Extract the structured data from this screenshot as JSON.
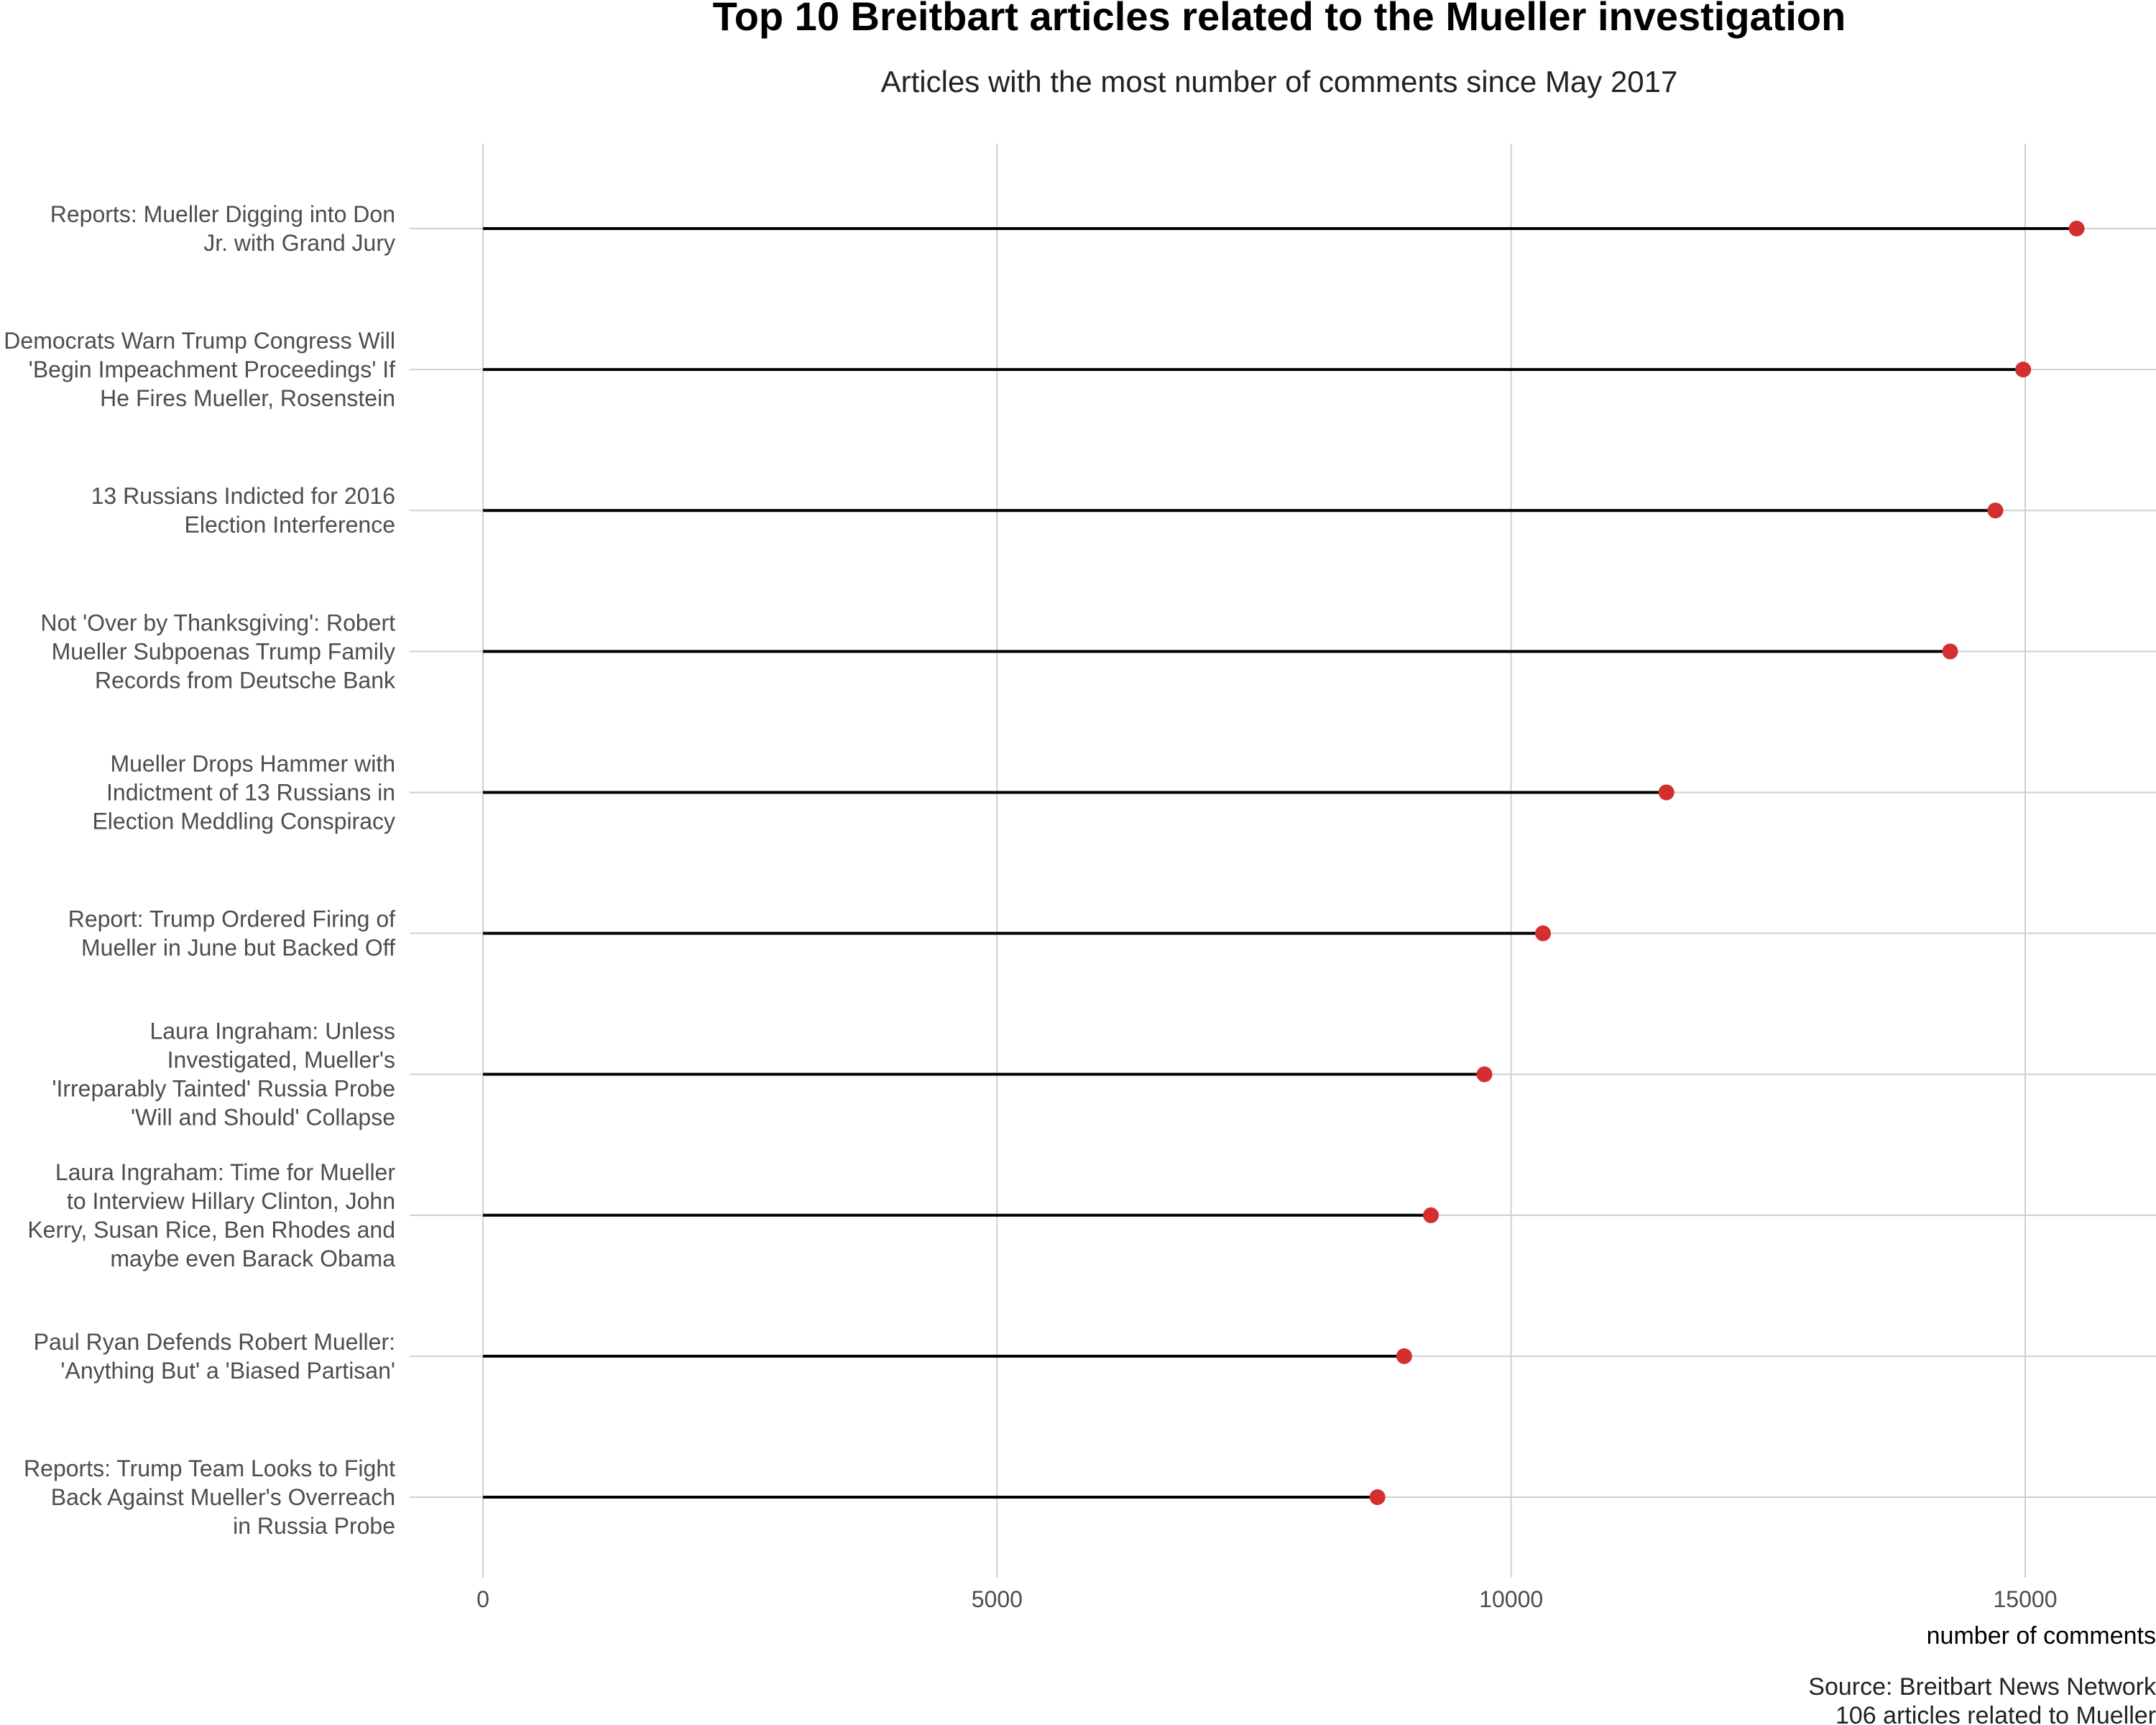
{
  "chart_data": {
    "type": "lollipop",
    "title": "Top 10 Breitbart articles related to the Mueller investigation",
    "subtitle": "Articles with the most number of comments since May 2017",
    "xlabel": "number of comments",
    "ylabel": "",
    "xlim": [
      0,
      16000
    ],
    "xticks": [
      "0",
      "5000",
      "10000",
      "15000"
    ],
    "grid": true,
    "point_color": "#d32f2f",
    "line_color": "#000000",
    "caption": [
      "Source: Breitbart News Network",
      "106 articles related to Mueller"
    ],
    "categories": [
      [
        "Reports: Mueller Digging into Don",
        "Jr. with Grand Jury"
      ],
      [
        "Democrats Warn Trump Congress Will",
        "'Begin Impeachment Proceedings' If",
        "He Fires Mueller, Rosenstein"
      ],
      [
        "13 Russians Indicted for 2016",
        "Election Interference"
      ],
      [
        "Not 'Over by Thanksgiving': Robert",
        "Mueller Subpoenas Trump Family",
        "Records from Deutsche Bank"
      ],
      [
        "Mueller Drops Hammer with",
        "Indictment of 13 Russians in",
        "Election Meddling Conspiracy"
      ],
      [
        "Report: Trump Ordered Firing of",
        "Mueller in June but Backed Off"
      ],
      [
        "Laura Ingraham: Unless",
        "Investigated, Mueller's",
        "'Irreparably Tainted' Russia Probe",
        "'Will and Should' Collapse"
      ],
      [
        "Laura Ingraham: Time for Mueller",
        "to Interview Hillary Clinton, John",
        "Kerry, Susan Rice, Ben Rhodes and",
        "maybe even Barack Obama"
      ],
      [
        "Paul Ryan Defends Robert Mueller:",
        "'Anything But' a 'Biased Partisan'"
      ],
      [
        "Reports: Trump Team Looks to Fight",
        "Back Against Mueller's Overreach",
        "in Russia Probe"
      ]
    ],
    "values": [
      15500,
      14980,
      14710,
      14270,
      11510,
      10310,
      9740,
      9220,
      8960,
      8700
    ]
  }
}
